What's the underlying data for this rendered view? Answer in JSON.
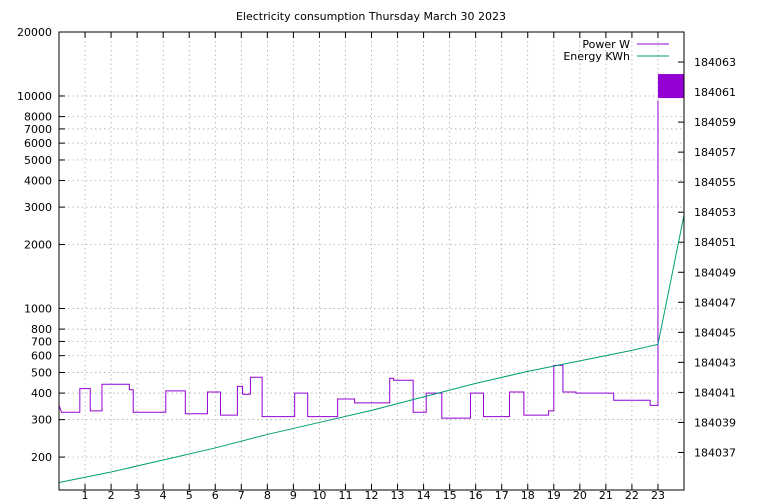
{
  "chart_data": {
    "type": "line",
    "title": "Electricity consumption Thursday March 30 2023",
    "xlabel": "",
    "ylabel": "",
    "y2label": "",
    "grid": true,
    "legend_position": "top-right",
    "x_ticks": [
      1,
      2,
      3,
      4,
      5,
      6,
      7,
      8,
      9,
      10,
      11,
      12,
      13,
      14,
      15,
      16,
      17,
      18,
      19,
      20,
      21,
      22,
      23
    ],
    "xlim": [
      0,
      24.0
    ],
    "y_scale": "log",
    "ylim": [
      140,
      20000
    ],
    "y_ticks": [
      200,
      300,
      400,
      500,
      600,
      700,
      800,
      1000,
      2000,
      3000,
      4000,
      5000,
      6000,
      7000,
      8000,
      10000,
      20000
    ],
    "y2lim": [
      184034.5,
      184065
    ],
    "y2_ticks": [
      184037,
      184039,
      184041,
      184043,
      184045,
      184047,
      184049,
      184051,
      184053,
      184055,
      184057,
      184059,
      184061,
      184063
    ],
    "series": [
      {
        "name": "Power W",
        "axis": "y",
        "color": "#9400d3",
        "step": true,
        "points": [
          [
            0,
            350
          ],
          [
            0.1,
            325
          ],
          [
            0.8,
            325
          ],
          [
            0.8,
            420
          ],
          [
            1.2,
            420
          ],
          [
            1.2,
            330
          ],
          [
            1.65,
            330
          ],
          [
            1.65,
            440
          ],
          [
            2.7,
            440
          ],
          [
            2.7,
            415
          ],
          [
            2.85,
            415
          ],
          [
            2.85,
            325
          ],
          [
            4.1,
            325
          ],
          [
            4.1,
            410
          ],
          [
            4.85,
            410
          ],
          [
            4.85,
            320
          ],
          [
            5.7,
            320
          ],
          [
            5.7,
            405
          ],
          [
            6.2,
            405
          ],
          [
            6.2,
            315
          ],
          [
            6.85,
            315
          ],
          [
            6.85,
            430
          ],
          [
            7.05,
            430
          ],
          [
            7.05,
            395
          ],
          [
            7.35,
            395
          ],
          [
            7.35,
            475
          ],
          [
            7.8,
            475
          ],
          [
            7.8,
            310
          ],
          [
            9.05,
            310
          ],
          [
            9.05,
            400
          ],
          [
            9.55,
            400
          ],
          [
            9.55,
            310
          ],
          [
            10.7,
            310
          ],
          [
            10.7,
            375
          ],
          [
            11.35,
            375
          ],
          [
            11.35,
            360
          ],
          [
            12.7,
            360
          ],
          [
            12.7,
            470
          ],
          [
            12.85,
            470
          ],
          [
            12.85,
            460
          ],
          [
            13.6,
            460
          ],
          [
            13.6,
            325
          ],
          [
            14.1,
            325
          ],
          [
            14.1,
            400
          ],
          [
            14.7,
            400
          ],
          [
            14.7,
            305
          ],
          [
            15.8,
            305
          ],
          [
            15.8,
            400
          ],
          [
            16.3,
            400
          ],
          [
            16.3,
            310
          ],
          [
            17.3,
            310
          ],
          [
            17.3,
            405
          ],
          [
            17.85,
            405
          ],
          [
            17.85,
            315
          ],
          [
            18.8,
            315
          ],
          [
            18.8,
            330
          ],
          [
            19.0,
            330
          ],
          [
            19.0,
            540
          ],
          [
            19.35,
            540
          ],
          [
            19.35,
            405
          ],
          [
            19.85,
            405
          ],
          [
            19.85,
            400
          ],
          [
            21.3,
            400
          ],
          [
            21.3,
            370
          ],
          [
            22.7,
            370
          ],
          [
            22.7,
            350
          ],
          [
            23.0,
            350
          ],
          [
            23.0,
            9500
          ]
        ]
      },
      {
        "name": "Energy KWh",
        "axis": "y2",
        "color": "#009e73",
        "points": [
          [
            0,
            184035.0
          ],
          [
            2,
            184035.7
          ],
          [
            4,
            184036.5
          ],
          [
            6,
            184037.3
          ],
          [
            8,
            184038.2
          ],
          [
            10,
            184039.0
          ],
          [
            12,
            184039.8
          ],
          [
            14,
            184040.7
          ],
          [
            16,
            184041.6
          ],
          [
            18,
            184042.4
          ],
          [
            20,
            184043.1
          ],
          [
            22,
            184043.8
          ],
          [
            23,
            184044.2
          ],
          [
            24,
            184052.8
          ]
        ]
      }
    ],
    "annotations": [
      {
        "type": "box",
        "x": [
          23.0,
          24.0
        ],
        "y2": [
          184060.6,
          184062.2
        ],
        "color": "#9400d3"
      }
    ]
  }
}
